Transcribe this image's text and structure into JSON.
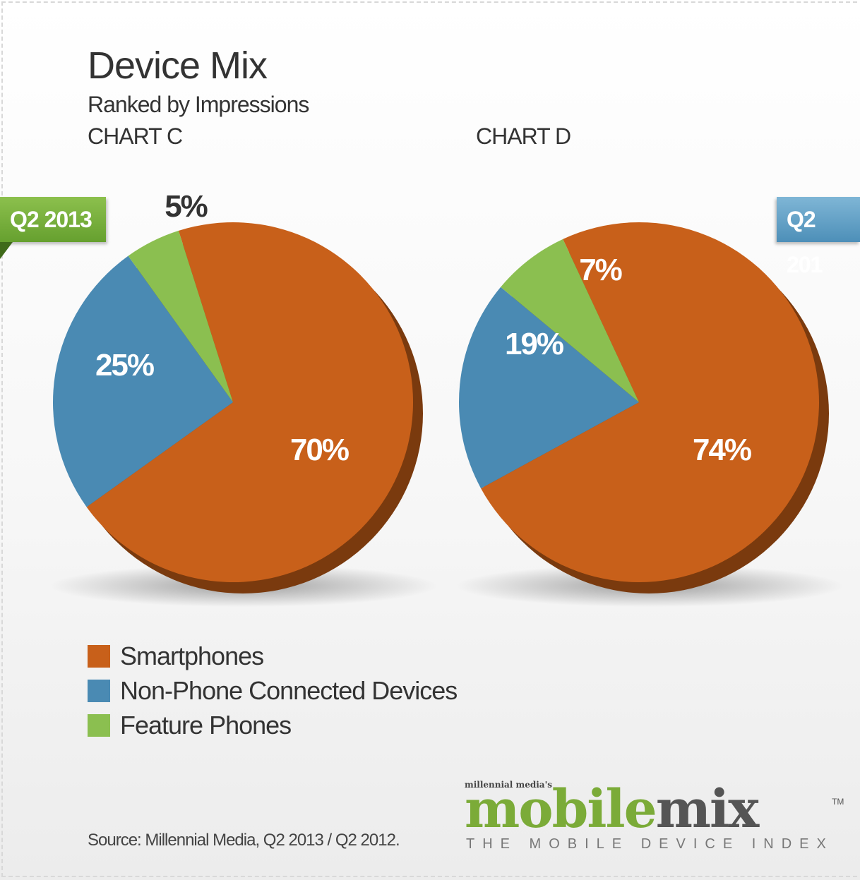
{
  "title": "Device Mix",
  "subtitle": "Ranked by Impressions",
  "source": "Source: Millennial Media, Q2 2013 / Q2 2012.",
  "logo": {
    "small": "millennial media's",
    "main_part1": "mobile",
    "main_part2": "mix",
    "tm": "TM",
    "tagline": "THE MOBILE DEVICE INDEX"
  },
  "colors": {
    "smartphones": "#c8601a",
    "smartphones_dark": "#7a3a0e",
    "non_phone": "#4a8ab3",
    "feature": "#8bbf50",
    "tag_green": "#7bb13d",
    "tag_blue": "#6aa6cc"
  },
  "legend": [
    {
      "label": "Smartphones",
      "color": "#c8601a"
    },
    {
      "label": "Non-Phone Connected Devices",
      "color": "#4a8ab3"
    },
    {
      "label": "Feature Phones",
      "color": "#8bbf50"
    }
  ],
  "chart_data": [
    {
      "type": "pie",
      "title": "CHART C",
      "period": "Q2 2013",
      "categories": [
        "Smartphones",
        "Non-Phone Connected Devices",
        "Feature Phones"
      ],
      "values": [
        70,
        25,
        5
      ],
      "labels": [
        "70%",
        "25%",
        "5%"
      ]
    },
    {
      "type": "pie",
      "title": "CHART D",
      "period": "Q2 201",
      "categories": [
        "Smartphones",
        "Non-Phone Connected Devices",
        "Feature Phones"
      ],
      "values": [
        74,
        19,
        7
      ],
      "labels": [
        "74%",
        "19%",
        "7%"
      ]
    }
  ]
}
